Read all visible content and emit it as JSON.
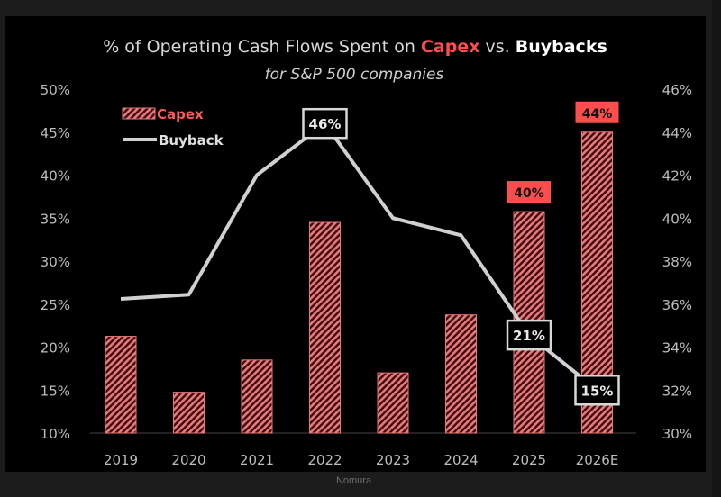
{
  "chart_data": {
    "type": "bar+line",
    "title_parts": [
      {
        "text": "% of Operating Cash Flows Spent on ",
        "color": "#d8d8d8",
        "bold": false
      },
      {
        "text": "Capex",
        "color": "#ff4d4d",
        "bold": true
      },
      {
        "text": " vs. ",
        "color": "#d8d8d8",
        "bold": false
      },
      {
        "text": "Buybacks",
        "color": "#ffffff",
        "bold": true
      }
    ],
    "subtitle": "for S&P 500 companies",
    "categories": [
      "2019",
      "2020",
      "2021",
      "2022",
      "2023",
      "2024",
      "2025",
      "2026E"
    ],
    "left_axis": {
      "ylim": [
        10,
        50
      ],
      "ticks": [
        "50%",
        "45%",
        "40%",
        "35%",
        "30%",
        "25%",
        "20%",
        "15%",
        "10%"
      ],
      "tick_values": [
        50,
        45,
        40,
        35,
        30,
        25,
        20,
        15,
        10
      ]
    },
    "right_axis": {
      "ylim": [
        30,
        46
      ],
      "ticks": [
        "46%",
        "44%",
        "42%",
        "40%",
        "38%",
        "36%",
        "34%",
        "32%",
        "30%"
      ],
      "tick_values": [
        46,
        44,
        42,
        40,
        38,
        36,
        34,
        32,
        30
      ]
    },
    "series": [
      {
        "name": "Capex",
        "kind": "bar",
        "axis": "right",
        "color": "#e8787a",
        "pattern": "diagonal-hatch",
        "values": [
          34.5,
          31.9,
          33.4,
          39.8,
          32.8,
          35.5,
          40.3,
          44.0
        ],
        "data_labels": [
          null,
          null,
          null,
          null,
          null,
          null,
          "40%",
          "44%"
        ],
        "label_bg": "#ff4d4d"
      },
      {
        "name": "Buyback",
        "kind": "line",
        "axis": "left",
        "color": "#d0d0d0",
        "values": [
          25.6,
          26.1,
          40.0,
          46.0,
          35.0,
          33.0,
          21.4,
          15.0
        ],
        "data_labels": [
          null,
          null,
          null,
          "46%",
          null,
          null,
          "21%",
          "15%"
        ]
      }
    ],
    "legend": {
      "placement": "top-left",
      "entries": [
        "Capex",
        "Buyback"
      ]
    },
    "grid": false
  },
  "source": "Nomura"
}
